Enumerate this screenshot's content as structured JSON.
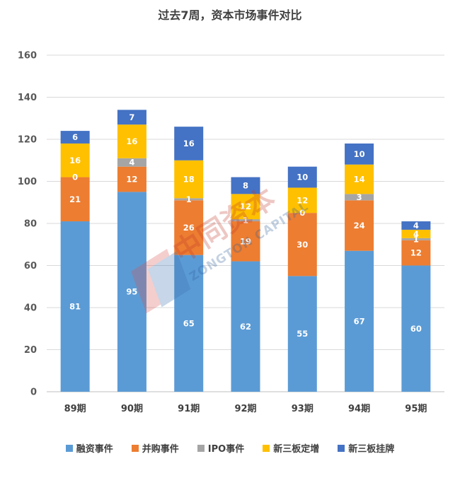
{
  "chart_data": {
    "type": "bar",
    "stacked": true,
    "title": "过去7周，资本市场事件对比",
    "xlabel": "",
    "ylabel": "",
    "categories": [
      "89期",
      "90期",
      "91期",
      "92期",
      "93期",
      "94期",
      "95期"
    ],
    "ylim": [
      0,
      160
    ],
    "yticks": [
      0,
      20,
      40,
      60,
      80,
      100,
      120,
      140,
      160
    ],
    "grid": true,
    "legend_position": "bottom",
    "series": [
      {
        "name": "融资事件",
        "color": "#5B9BD5",
        "values": [
          81,
          95,
          65,
          62,
          55,
          67,
          60
        ]
      },
      {
        "name": "并购事件",
        "color": "#ED7D31",
        "values": [
          21,
          12,
          26,
          19,
          30,
          24,
          12
        ]
      },
      {
        "name": "IPO事件",
        "color": "#A5A5A5",
        "values": [
          0,
          4,
          1,
          1,
          0,
          3,
          1
        ]
      },
      {
        "name": "新三板定增",
        "color": "#FFC000",
        "values": [
          16,
          16,
          18,
          12,
          12,
          14,
          4
        ]
      },
      {
        "name": "新三板挂牌",
        "color": "#4472C4",
        "values": [
          6,
          7,
          16,
          8,
          10,
          10,
          4
        ]
      }
    ]
  },
  "watermark": {
    "text_cn": "中同资本",
    "text_en": "ZONGTON CAPITAL"
  }
}
